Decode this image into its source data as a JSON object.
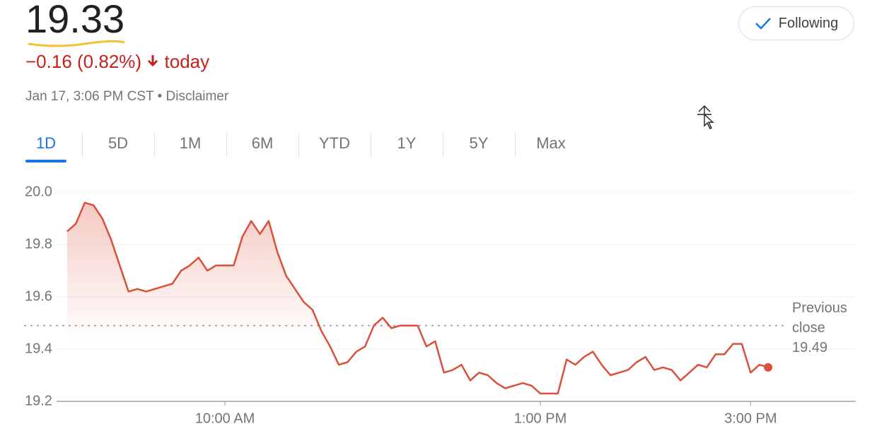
{
  "header": {
    "price": "19.33",
    "change": "−0.16 (0.82%)",
    "change_suffix": "today",
    "timestamp": "Jan 17, 3:06 PM CST",
    "separator": "•",
    "disclaimer": "Disclaimer",
    "follow_button": "Following"
  },
  "tabs": [
    "1D",
    "5D",
    "1M",
    "6M",
    "YTD",
    "1Y",
    "5Y",
    "Max"
  ],
  "selected_tab": "1D",
  "chart_data": {
    "type": "line",
    "x": [
      "8:30 AM",
      "8:35 AM",
      "8:40 AM",
      "8:45 AM",
      "8:50 AM",
      "8:55 AM",
      "9:00 AM",
      "9:05 AM",
      "9:10 AM",
      "9:15 AM",
      "9:20 AM",
      "9:25 AM",
      "9:30 AM",
      "9:35 AM",
      "9:40 AM",
      "9:45 AM",
      "9:50 AM",
      "9:55 AM",
      "10:00 AM",
      "10:05 AM",
      "10:10 AM",
      "10:15 AM",
      "10:20 AM",
      "10:25 AM",
      "10:30 AM",
      "10:35 AM",
      "10:40 AM",
      "10:45 AM",
      "10:50 AM",
      "10:55 AM",
      "11:00 AM",
      "11:05 AM",
      "11:10 AM",
      "11:15 AM",
      "11:20 AM",
      "11:25 AM",
      "11:30 AM",
      "11:35 AM",
      "11:40 AM",
      "11:45 AM",
      "11:50 AM",
      "11:55 AM",
      "12:00 PM",
      "12:05 PM",
      "12:10 PM",
      "12:15 PM",
      "12:20 PM",
      "12:25 PM",
      "12:30 PM",
      "12:35 PM",
      "12:40 PM",
      "12:45 PM",
      "12:50 PM",
      "12:55 PM",
      "1:00 PM",
      "1:05 PM",
      "1:10 PM",
      "1:15 PM",
      "1:20 PM",
      "1:25 PM",
      "1:30 PM",
      "1:35 PM",
      "1:40 PM",
      "1:45 PM",
      "1:50 PM",
      "1:55 PM",
      "2:00 PM",
      "2:05 PM",
      "2:10 PM",
      "2:15 PM",
      "2:20 PM",
      "2:25 PM",
      "2:30 PM",
      "2:35 PM",
      "2:40 PM",
      "2:45 PM",
      "2:50 PM",
      "2:55 PM",
      "3:00 PM",
      "3:05 PM",
      "3:10 PM"
    ],
    "series": [
      {
        "color": "#d9503b",
        "values": [
          19.85,
          19.88,
          19.96,
          19.95,
          19.9,
          19.82,
          19.72,
          19.62,
          19.63,
          19.62,
          19.63,
          19.64,
          19.65,
          19.7,
          19.72,
          19.75,
          19.7,
          19.72,
          19.72,
          19.72,
          19.83,
          19.89,
          19.84,
          19.89,
          19.77,
          19.68,
          19.63,
          19.58,
          19.55,
          19.47,
          19.41,
          19.34,
          19.35,
          19.39,
          19.41,
          19.49,
          19.52,
          19.48,
          19.49,
          19.49,
          19.49,
          19.41,
          19.43,
          19.31,
          19.32,
          19.34,
          19.28,
          19.31,
          19.3,
          19.27,
          19.25,
          19.26,
          19.27,
          19.26,
          19.23,
          19.23,
          19.23,
          19.36,
          19.34,
          19.37,
          19.39,
          19.34,
          19.3,
          19.31,
          19.32,
          19.35,
          19.37,
          19.32,
          19.33,
          19.32,
          19.28,
          19.31,
          19.34,
          19.33,
          19.38,
          19.38,
          19.42,
          19.42,
          19.31,
          19.34,
          19.33
        ]
      }
    ],
    "xlim": [
      "8:30 AM",
      "4:00 PM"
    ],
    "xticks": [
      "10:00 AM",
      "1:00 PM",
      "3:00 PM"
    ],
    "ylim": [
      19.2,
      20.0
    ],
    "yticks": [
      19.2,
      19.4,
      19.6,
      19.8,
      {
        "value": 20.0,
        "label": "20.0"
      }
    ],
    "grid": true,
    "reference_line": {
      "label": "Previous close",
      "value": 19.49
    }
  }
}
